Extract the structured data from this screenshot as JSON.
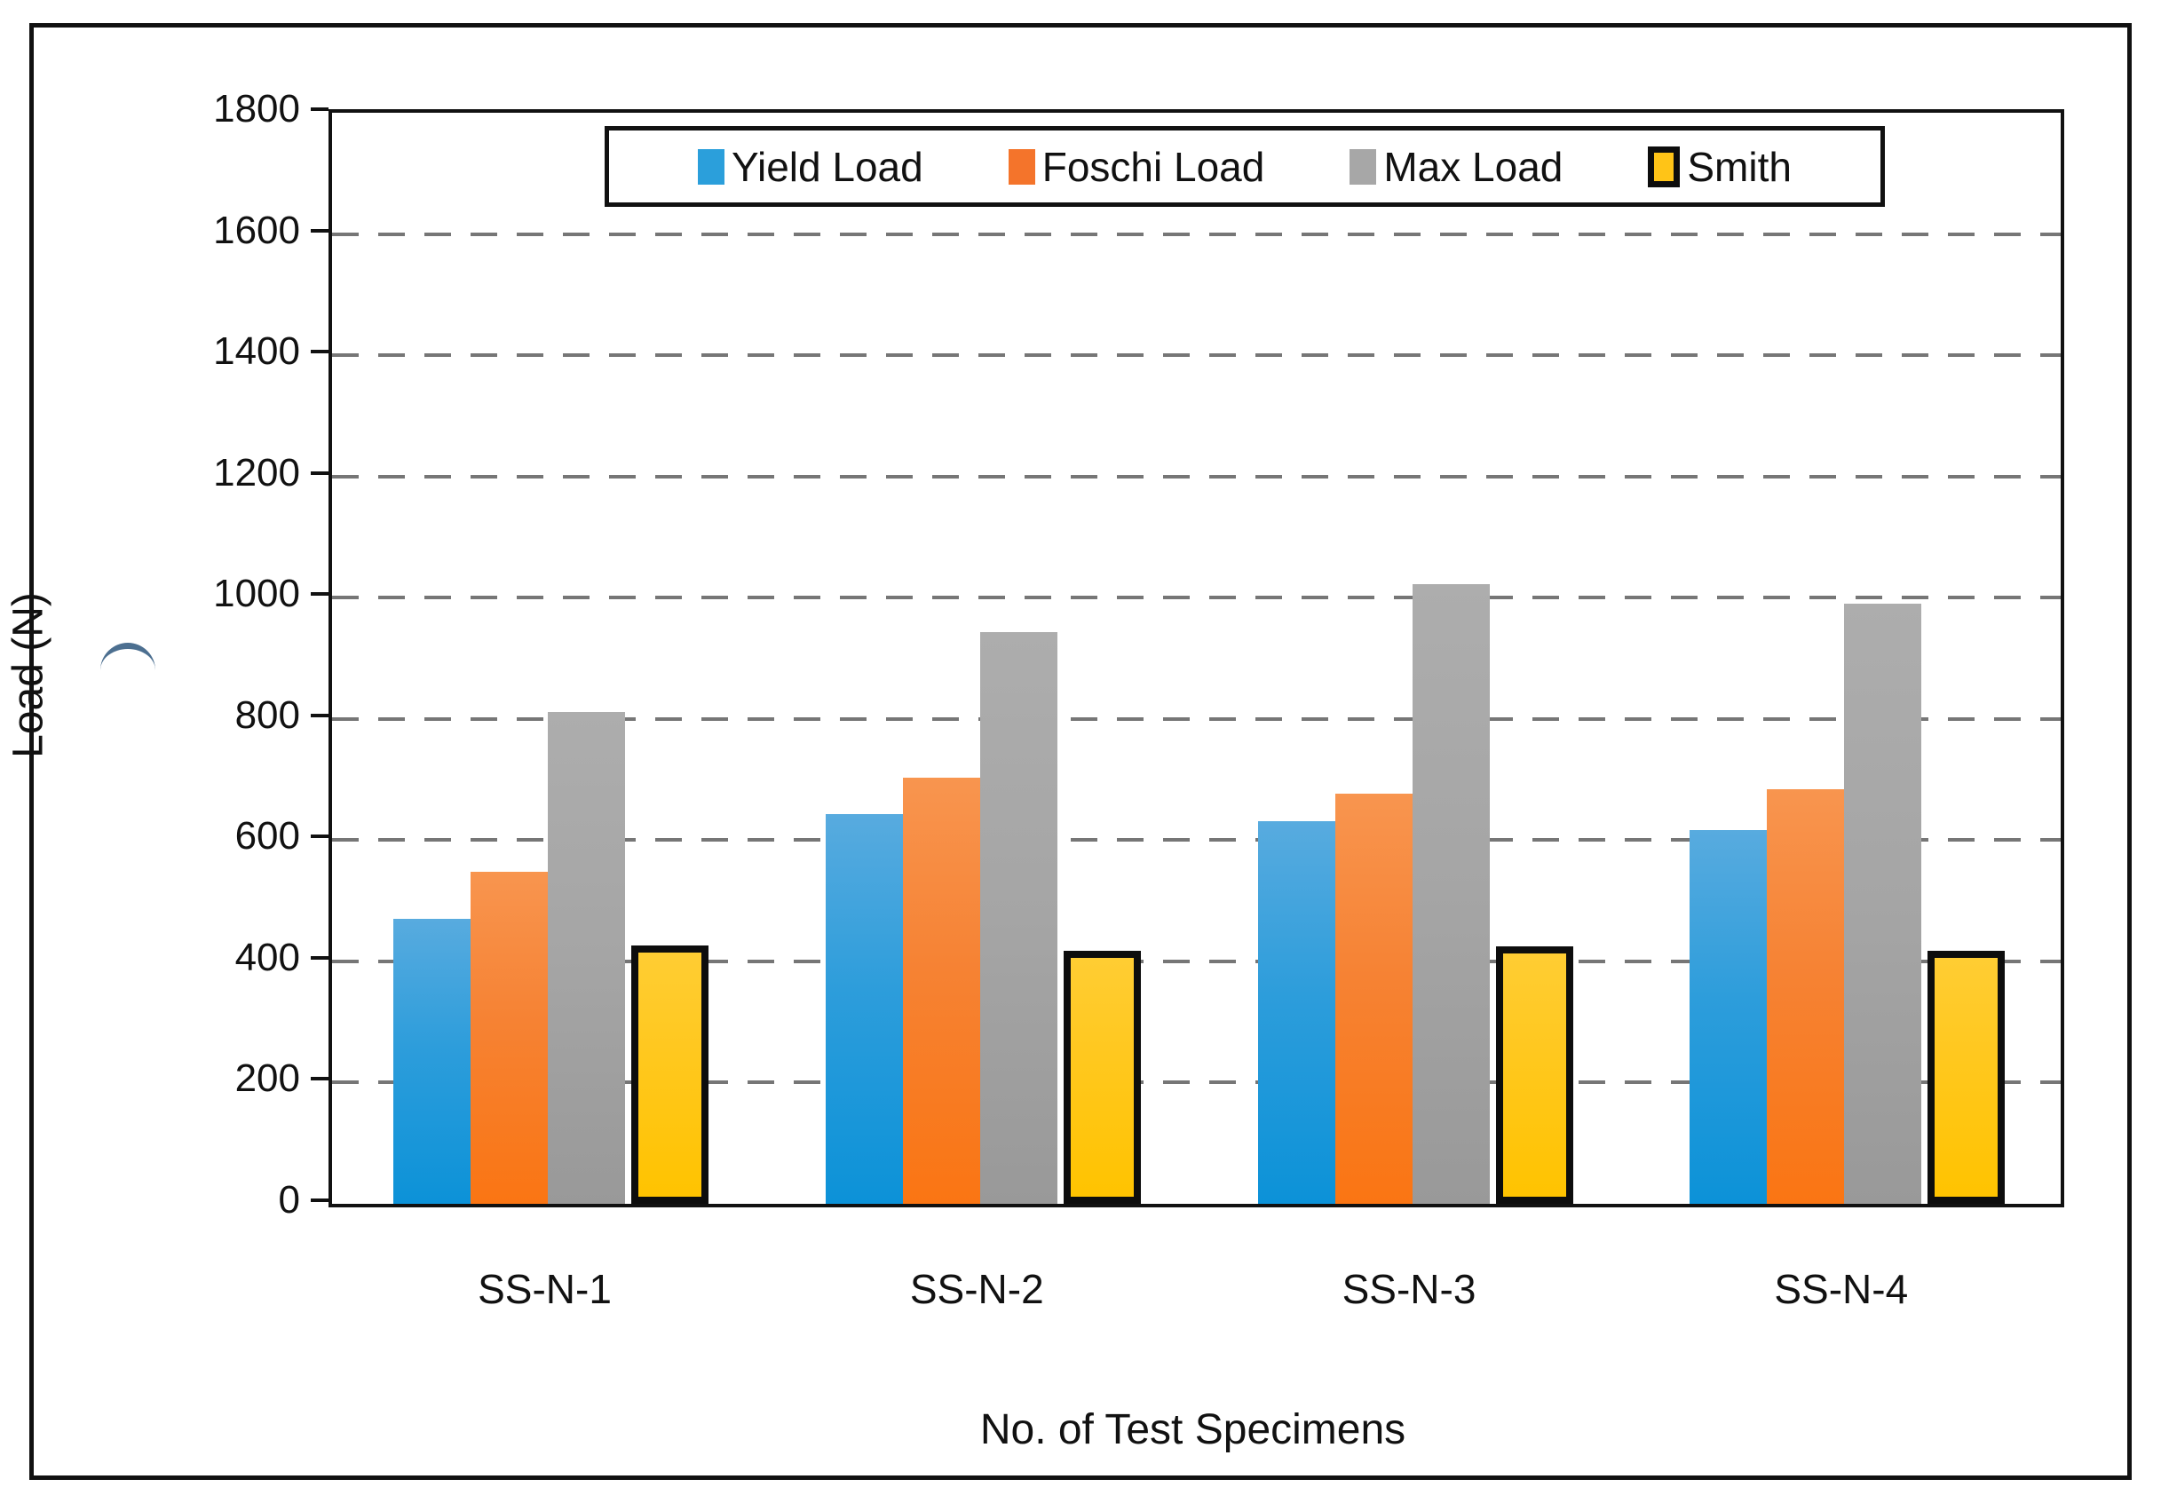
{
  "chart_data": {
    "type": "bar",
    "title": "",
    "xlabel": "No. of Test Specimens",
    "ylabel": "Load (N)",
    "categories": [
      "SS-N-1",
      "SS-N-2",
      "SS-N-3",
      "SS-N-4"
    ],
    "series": [
      {
        "name": "Yield Load",
        "color": "#2B9FDB",
        "values": [
          470,
          643,
          632,
          616
        ]
      },
      {
        "name": "Foschi Load",
        "color": "#F4742B",
        "values": [
          548,
          703,
          676,
          684
        ]
      },
      {
        "name": "Max Load",
        "color": "#A7A7A7",
        "values": [
          812,
          943,
          1023,
          990
        ]
      },
      {
        "name": "Smith",
        "color": "#FFC417",
        "marker_border": "#0d0d0d",
        "bar_border": "#0d0d0d",
        "values": [
          426,
          418,
          425,
          417
        ]
      }
    ],
    "ylim": [
      0,
      1800
    ],
    "ytick_step": 200,
    "y_tick_labels": [
      "0",
      "200",
      "400",
      "600",
      "800",
      "1000",
      "1200",
      "1400",
      "1600",
      "1800"
    ],
    "grid": "horizontal-dashed",
    "gridline_color": "#767676",
    "legend_position": "top-center",
    "legend_entries": [
      "Yield Load",
      "Foschi Load",
      "Max Load",
      "Smith"
    ]
  }
}
